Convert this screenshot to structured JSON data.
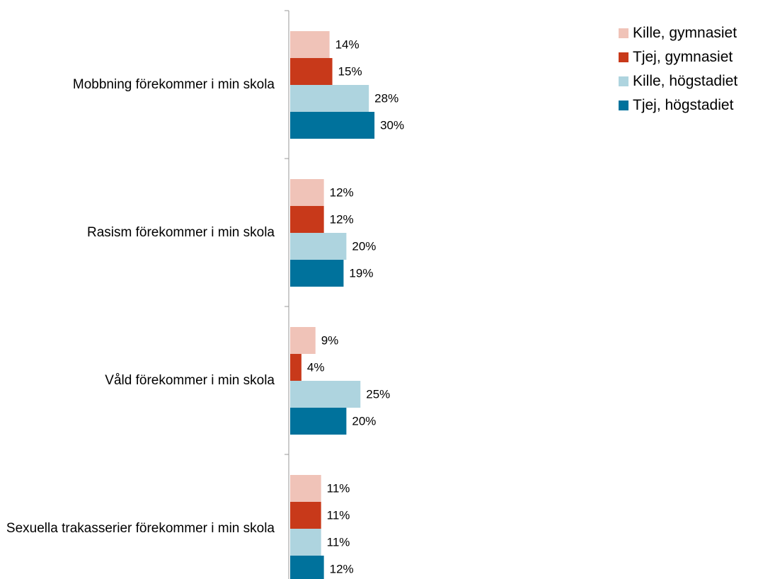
{
  "chart_data": {
    "type": "hbar",
    "categories": [
      "Mobbning förekommer i min skola",
      "Rasism förekommer i min skola",
      "Våld förekommer i min skola",
      "Sexuella trakasserier förekommer i min skola"
    ],
    "series": [
      {
        "name": "Kille, gymnasiet",
        "color": "#f0c3b8",
        "values": [
          14,
          12,
          9,
          11
        ],
        "value_labels": [
          "14%",
          "12%",
          "9%",
          "11%"
        ]
      },
      {
        "name": "Tjej, gymnasiet",
        "color": "#c8391a",
        "values": [
          15,
          12,
          4,
          11
        ],
        "value_labels": [
          "15%",
          "12%",
          "4%",
          "11%"
        ]
      },
      {
        "name": "Kille, högstadiet",
        "color": "#aed4df",
        "values": [
          28,
          20,
          25,
          11
        ],
        "value_labels": [
          "28%",
          "20%",
          "25%",
          "11%"
        ]
      },
      {
        "name": "Tjej, högstadiet",
        "color": "#00729c",
        "values": [
          30,
          19,
          20,
          12
        ],
        "value_labels": [
          "30%",
          "19%",
          "20%",
          "12%"
        ]
      }
    ],
    "xlim": [
      0,
      100
    ],
    "legend": "top-right"
  }
}
